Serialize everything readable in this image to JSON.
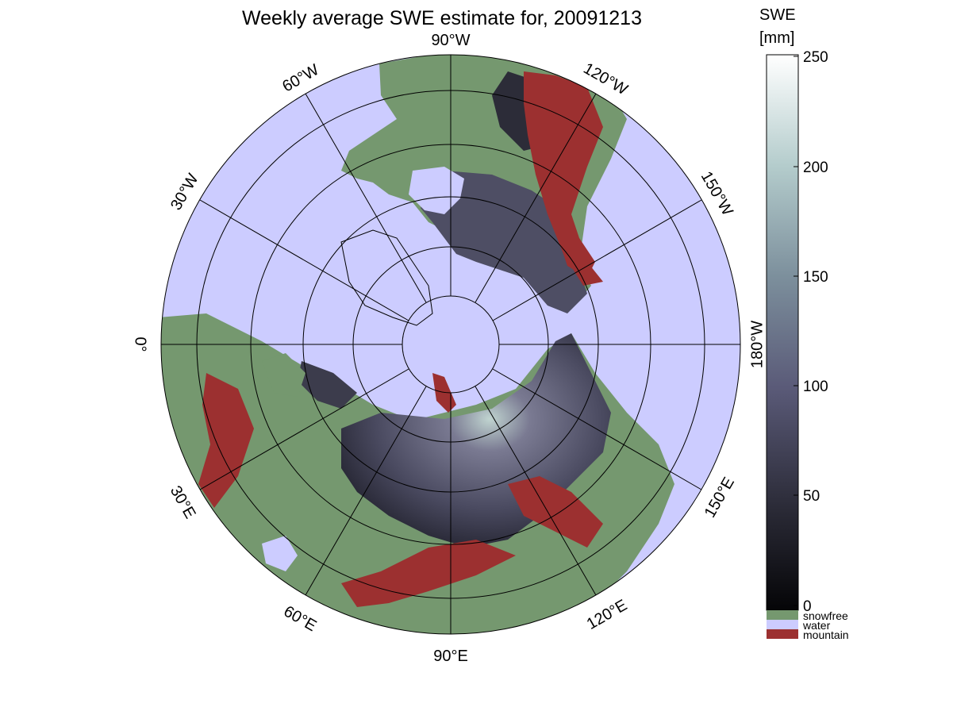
{
  "title": "Weekly average SWE estimate for, 20091213",
  "colorbar": {
    "label_line1": "SWE",
    "label_line2": "[mm]",
    "ticks": [
      "0",
      "50",
      "100",
      "150",
      "200",
      "250"
    ],
    "categories": [
      {
        "label": "snowfree",
        "color": "#75986f"
      },
      {
        "label": "water",
        "color": "#ccccff"
      },
      {
        "label": "mountain",
        "color": "#9c3030"
      }
    ]
  },
  "map": {
    "projection": "north polar stereographic",
    "longitude_labels": [
      {
        "id": "lon-90w",
        "text": "90°W"
      },
      {
        "id": "lon-120w",
        "text": "120°W"
      },
      {
        "id": "lon-150w",
        "text": "150°W"
      },
      {
        "id": "lon-180w",
        "text": "180°W"
      },
      {
        "id": "lon-150e",
        "text": "150°E"
      },
      {
        "id": "lon-120e",
        "text": "120°E"
      },
      {
        "id": "lon-90e",
        "text": "90°E"
      },
      {
        "id": "lon-60e",
        "text": "60°E"
      },
      {
        "id": "lon-30e",
        "text": "30°E"
      },
      {
        "id": "lon-0",
        "text": "0°"
      },
      {
        "id": "lon-30w",
        "text": "30°W"
      },
      {
        "id": "lon-60w",
        "text": "60°W"
      }
    ]
  },
  "colors": {
    "water": "#ccccff",
    "snowfree": "#75986f",
    "mountain": "#9c3030",
    "swe_low": "#0a0a0e",
    "swe_mid": "#56566e",
    "swe_high": "#ffffff"
  },
  "chart_data": {
    "type": "heatmap",
    "title": "Weekly average SWE estimate for, 20091213",
    "colorbar_range": [
      0,
      250
    ],
    "colorbar_label": "SWE [mm]"
  }
}
